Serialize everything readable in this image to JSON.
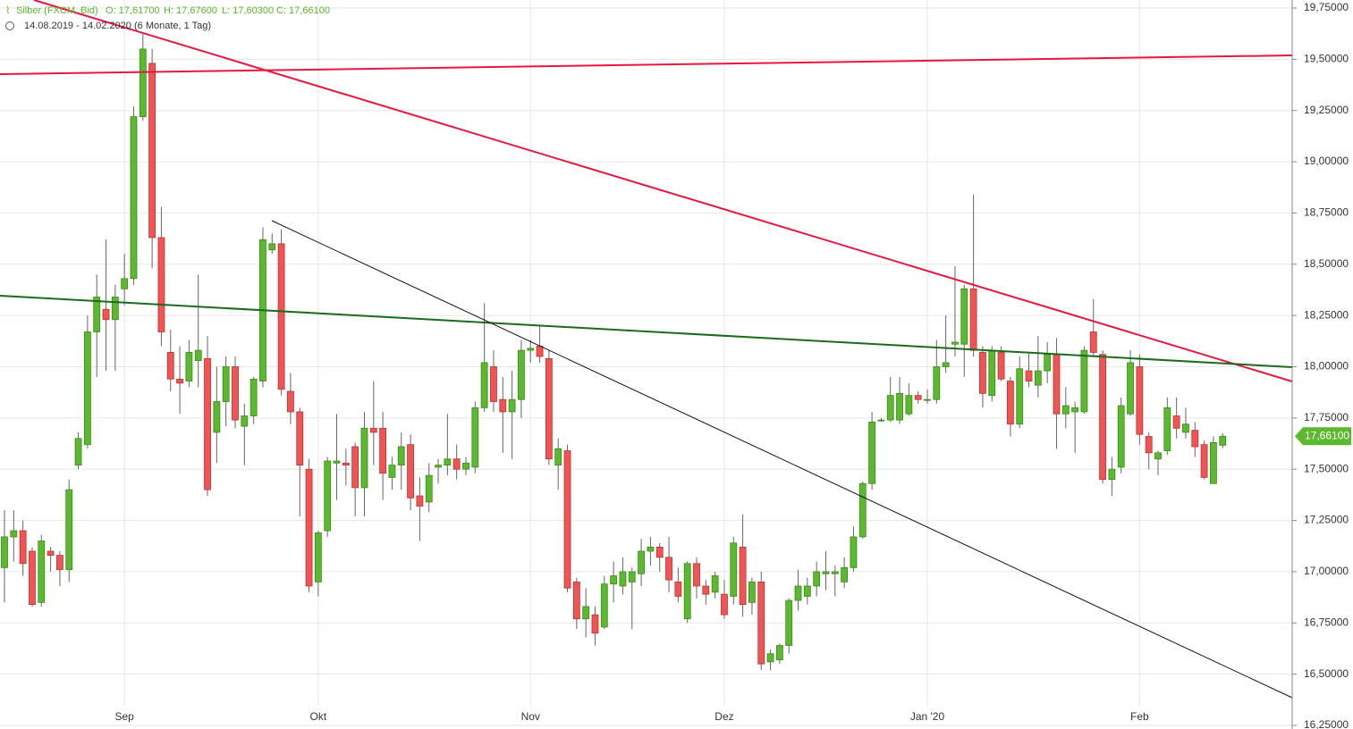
{
  "chart_data": {
    "type": "candlestick",
    "header": {
      "symbol": "Silber (FXCM, Bid)",
      "ohlc_labels": [
        "O: 17,61700",
        "H: 17,67600",
        "L: 17,60300",
        "C: 17,66100"
      ],
      "range": "14.08.2019 - 14.02.2020",
      "period": "(6 Monate, 1 Tag)"
    },
    "up_color": "#5cb82e",
    "down_color": "#f05454",
    "ylim": [
      16.25,
      19.75
    ],
    "yticks": [
      {
        "value": 16.25,
        "label": "16,25000"
      },
      {
        "value": 16.5,
        "label": "16,50000"
      },
      {
        "value": 16.75,
        "label": "16,75000"
      },
      {
        "value": 17,
        "label": "17,00000"
      },
      {
        "value": 17.25,
        "label": "17,25000"
      },
      {
        "value": 17.5,
        "label": "17,50000"
      },
      {
        "value": 17.75,
        "label": "17,75000"
      },
      {
        "value": 18,
        "label": "18,00000"
      },
      {
        "value": 18.25,
        "label": "18,25000"
      },
      {
        "value": 18.5,
        "label": "18,50000"
      },
      {
        "value": 18.75,
        "label": "18,75000"
      },
      {
        "value": 19,
        "label": "19,00000"
      },
      {
        "value": 19.25,
        "label": "19,25000"
      },
      {
        "value": 19.5,
        "label": "19,50000"
      },
      {
        "value": 19.75,
        "label": "19,75000"
      }
    ],
    "grid": true,
    "current_price": {
      "value": 17.661,
      "label": "17,66100"
    },
    "categories": [
      null,
      null,
      null,
      null,
      null,
      null,
      null,
      null,
      null,
      null,
      null,
      null,
      null,
      "Sep",
      null,
      null,
      null,
      null,
      null,
      null,
      null,
      null,
      null,
      null,
      null,
      null,
      null,
      null,
      null,
      null,
      null,
      null,
      null,
      null,
      "Okt",
      null,
      null,
      null,
      null,
      null,
      null,
      null,
      null,
      null,
      null,
      null,
      null,
      null,
      null,
      null,
      null,
      null,
      null,
      null,
      null,
      null,
      null,
      "Nov",
      null,
      null,
      null,
      null,
      null,
      null,
      null,
      null,
      null,
      null,
      null,
      null,
      null,
      null,
      null,
      null,
      null,
      null,
      null,
      null,
      "Dez",
      null,
      null,
      null,
      null,
      null,
      null,
      null,
      null,
      null,
      null,
      null,
      null,
      null,
      null,
      null,
      null,
      null,
      null,
      null,
      null,
      null,
      "Jan '20",
      null,
      null,
      null,
      null,
      null,
      null,
      null,
      null,
      null,
      null,
      null,
      null,
      null,
      null,
      null,
      null,
      null,
      null,
      null,
      null,
      null,
      null,
      "Feb",
      null,
      null,
      null,
      null,
      null,
      null,
      null,
      null,
      null
    ],
    "open": [
      17.02,
      17.17,
      17.2,
      17.1,
      16.85,
      17.1,
      17.08,
      17.01,
      17.52,
      17.62,
      18.17,
      18.28,
      18.23,
      18.38,
      18.43,
      19.22,
      19.48,
      18.63,
      18.07,
      17.94,
      17.93,
      18.03,
      18.04,
      17.68,
      17.83,
      18.0,
      17.71,
      17.76,
      17.93,
      18.57,
      18.6,
      17.88,
      17.78,
      17.5,
      16.95,
      17.2,
      17.53,
      17.53,
      17.61,
      17.41,
      17.7,
      17.7,
      17.46,
      17.52,
      17.62,
      17.37,
      17.34,
      17.51,
      17.52,
      17.55,
      17.5,
      17.51,
      17.8,
      18.0,
      17.84,
      17.78,
      17.84,
      18.08,
      18.1,
      18.04,
      17.52,
      17.59,
      16.95,
      16.77,
      16.79,
      16.73,
      16.94,
      16.93,
      16.95,
      16.99,
      17.1,
      17.12,
      17.07,
      16.95,
      16.77,
      17.04,
      16.93,
      16.9,
      16.89,
      16.88,
      17.12,
      16.85,
      16.95,
      16.56,
      16.57,
      16.64,
      16.86,
      16.88,
      16.93,
      16.99,
      16.99,
      16.95,
      17.02,
      17.17,
      17.43,
      17.74,
      17.74,
      17.74,
      17.77,
      17.86,
      17.84,
      17.84,
      18.0,
      18.11,
      18.11,
      18.38,
      18.07,
      17.86,
      18.07,
      17.93,
      17.72,
      17.98,
      17.91,
      17.98,
      18.06,
      17.77,
      17.78,
      17.78,
      18.17,
      18.06,
      17.45,
      17.51,
      17.77,
      18.0,
      17.66,
      17.55,
      17.59,
      17.76,
      17.68,
      17.69,
      17.62,
      17.43,
      17.617
    ],
    "high": [
      17.3,
      17.3,
      17.25,
      17.12,
      17.18,
      17.12,
      17.1,
      17.45,
      17.68,
      18.25,
      18.45,
      18.62,
      18.4,
      18.55,
      19.27,
      19.63,
      19.55,
      18.78,
      18.18,
      18.1,
      18.13,
      18.45,
      18.15,
      18.0,
      18.05,
      18.05,
      17.82,
      17.95,
      18.68,
      18.65,
      18.67,
      17.97,
      17.8,
      17.55,
      17.2,
      17.56,
      17.77,
      17.6,
      17.63,
      17.78,
      17.93,
      17.78,
      17.56,
      17.68,
      17.67,
      17.46,
      17.53,
      17.55,
      17.77,
      17.62,
      17.56,
      17.83,
      18.31,
      18.08,
      17.95,
      17.98,
      18.13,
      18.13,
      18.2,
      18.08,
      17.65,
      17.62,
      16.97,
      16.92,
      16.83,
      16.98,
      17.05,
      17.07,
      17.02,
      17.16,
      17.17,
      17.14,
      17.17,
      17.02,
      17.05,
      17.07,
      16.96,
      17.0,
      16.96,
      17.17,
      17.28,
      16.97,
      17.0,
      16.62,
      16.65,
      16.87,
      17.01,
      16.97,
      17.05,
      17.1,
      17.03,
      17.07,
      17.22,
      17.44,
      17.78,
      17.75,
      17.95,
      17.95,
      17.92,
      17.88,
      17.89,
      18.13,
      18.25,
      18.49,
      18.4,
      18.84,
      18.1,
      18.1,
      18.1,
      17.95,
      18.05,
      18.07,
      18.15,
      18.12,
      18.14,
      17.9,
      17.83,
      18.1,
      18.33,
      18.08,
      17.56,
      17.85,
      18.08,
      18.06,
      17.68,
      17.59,
      17.85,
      17.85,
      17.8,
      17.73,
      17.64,
      17.66,
      17.676
    ],
    "low": [
      16.85,
      17.05,
      16.98,
      16.83,
      16.83,
      17.0,
      16.93,
      16.95,
      17.5,
      17.6,
      17.95,
      17.98,
      17.98,
      18.3,
      18.4,
      19.2,
      18.48,
      18.1,
      17.88,
      17.77,
      17.9,
      17.9,
      17.37,
      17.53,
      17.71,
      17.7,
      17.52,
      17.72,
      17.9,
      18.55,
      17.86,
      17.72,
      17.27,
      16.9,
      16.88,
      17.17,
      17.35,
      17.42,
      17.27,
      17.27,
      17.52,
      17.35,
      17.4,
      17.4,
      17.3,
      17.15,
      17.29,
      17.43,
      17.47,
      17.45,
      17.47,
      17.48,
      17.78,
      17.78,
      17.58,
      17.55,
      17.75,
      18.02,
      18.02,
      17.52,
      17.4,
      16.9,
      16.72,
      16.68,
      16.64,
      16.72,
      16.85,
      16.89,
      16.72,
      16.93,
      17.03,
      17.0,
      16.9,
      16.85,
      16.75,
      16.87,
      16.84,
      16.87,
      16.77,
      16.84,
      16.78,
      16.79,
      16.52,
      16.52,
      16.55,
      16.6,
      16.81,
      16.84,
      16.88,
      16.91,
      16.88,
      16.92,
      17.0,
      17.16,
      17.4,
      17.73,
      17.73,
      17.72,
      17.76,
      17.82,
      17.82,
      17.82,
      17.97,
      18.05,
      17.95,
      18.05,
      17.8,
      17.83,
      17.93,
      17.66,
      17.7,
      17.9,
      17.85,
      17.92,
      17.6,
      17.7,
      17.58,
      17.77,
      18.05,
      17.43,
      17.37,
      17.48,
      17.76,
      17.62,
      17.5,
      17.47,
      17.57,
      17.65,
      17.65,
      17.56,
      17.45,
      17.43,
      17.603
    ],
    "close": [
      17.17,
      17.2,
      17.04,
      16.84,
      17.15,
      17.08,
      17.01,
      17.4,
      17.65,
      18.17,
      18.34,
      18.23,
      18.34,
      18.43,
      19.22,
      19.55,
      18.63,
      18.17,
      17.94,
      17.92,
      18.07,
      18.08,
      17.4,
      17.83,
      18.0,
      17.74,
      17.76,
      17.94,
      18.62,
      18.6,
      17.89,
      17.78,
      17.52,
      16.93,
      17.19,
      17.54,
      17.54,
      17.52,
      17.41,
      17.7,
      17.68,
      17.48,
      17.52,
      17.61,
      17.36,
      17.32,
      17.47,
      17.52,
      17.55,
      17.5,
      17.53,
      17.8,
      18.02,
      17.83,
      17.78,
      17.84,
      18.08,
      18.09,
      18.05,
      17.55,
      17.6,
      16.92,
      16.77,
      16.83,
      16.7,
      16.94,
      16.98,
      17.0,
      17.0,
      17.1,
      17.12,
      17.07,
      16.96,
      16.88,
      17.04,
      16.93,
      16.89,
      16.98,
      16.79,
      17.14,
      16.84,
      16.95,
      16.55,
      16.6,
      16.64,
      16.86,
      16.93,
      16.93,
      17.0,
      17.0,
      17.0,
      17.02,
      17.17,
      17.43,
      17.73,
      17.74,
      17.86,
      17.87,
      17.86,
      17.84,
      17.84,
      18.0,
      18.02,
      18.12,
      18.38,
      18.08,
      17.87,
      18.08,
      17.94,
      17.72,
      17.99,
      17.93,
      17.98,
      18.06,
      17.77,
      17.81,
      17.8,
      18.08,
      18.07,
      17.45,
      17.5,
      17.81,
      18.02,
      17.67,
      17.58,
      17.58,
      17.8,
      17.7,
      17.72,
      17.61,
      17.46,
      17.63,
      17.661
    ]
  }
}
